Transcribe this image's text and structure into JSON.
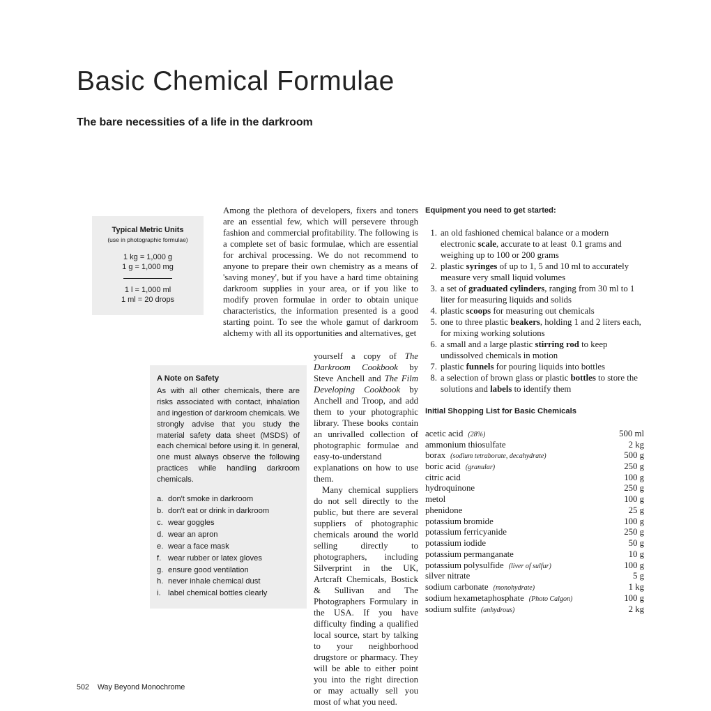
{
  "title": "Basic Chemical Formulae",
  "subtitle": "The bare necessities of a life in the darkroom",
  "units": {
    "heading": "Typical Metric Units",
    "sub": "(use in photographic formulae)",
    "l1": "1 kg = 1,000 g",
    "l2": "1 g = 1,000 mg",
    "l3": "1 l = 1,000 ml",
    "l4": "1 ml = 20 drops"
  },
  "safety": {
    "heading": "A Note on Safety",
    "body": "As with all other chemicals, there are risks associated with contact, inhalation and ingestion of darkroom chemicals. We strongly advise that you study the material safety data sheet (MSDS) of each chemical before using it. In general, one must always observe the following practices while handling darkroom chemicals.",
    "items": [
      {
        "l": "a.",
        "t": "don't smoke in darkroom"
      },
      {
        "l": "b.",
        "t": "don't eat or drink in darkroom"
      },
      {
        "l": "c.",
        "t": "wear goggles"
      },
      {
        "l": "d.",
        "t": "wear an apron"
      },
      {
        "l": "e.",
        "t": "wear a face mask"
      },
      {
        "l": "f.",
        "t": "wear rubber or latex gloves"
      },
      {
        "l": "g.",
        "t": "ensure good ventilation"
      },
      {
        "l": "h.",
        "t": "never inhale chemical dust"
      },
      {
        "l": "i.",
        "t": "label chemical bottles clearly"
      }
    ]
  },
  "main": {
    "p1": "Among the plethora of developers, fixers and toners are an essential few, which will persevere through fashion and commercial profitability. The following is a complete set of basic formulae, which are essential for archival processing. We do not recommend to anyone to prepare their own chemistry as a means of 'saving money', but if you have a hard time obtaining darkroom supplies in your area, or if you like to modify proven formulae in order to obtain unique characteristics, the information presented is a good starting point. To see the whole gamut of darkroom alchemy with all its opportunities and alternatives, get",
    "p2a": "yourself a copy of ",
    "p2b": "The Darkroom Cookbook",
    "p2c": " by Steve Anchell and ",
    "p2d": "The Film Developing Cookbook",
    "p2e": " by Anchell and Troop, and add them to your photographic library. These books contain an unrivalled collection of photographic formulae and easy-to-understand explanations on how to use them.",
    "p3": "Many chemical suppliers do not sell directly to the public, but there are several suppliers of photographic chemicals around the world selling directly to photographers, including Silverprint in the UK, Artcraft Chemicals, Bostick & Sullivan and The Photographers Formulary in the USA. If you have difficulty finding a qualified local source, start by talking to your neighborhood drugstore or pharmacy. They will be able to either point you into the right direction or may actually sell you most of what you need."
  },
  "equip": {
    "heading": "Equipment you need to get started:",
    "items": [
      "an old fashioned chemical balance or a modern electronic <strong>scale</strong>, accurate to at least  0.1 grams and weighing up to 100 or 200 grams",
      "plastic <strong>syringes</strong> of up to 1, 5 and 10 ml to accurately measure very small liquid volumes",
      "a set of <strong>graduated cylinders</strong>, ranging from 30 ml to 1 liter for measuring liquids and solids",
      "plastic <strong>scoops</strong> for measuring out chemicals",
      "one to three plastic <strong>beakers</strong>, holding 1 and 2 liters each, for mixing working solutions",
      "a small and a large plastic <strong>stirring rod</strong> to keep undissolved chemicals in motion",
      "plastic <strong>funnels</strong> for pouring liquids into bottles",
      "a selection of brown glass or plastic <strong>bottles</strong> to store the solutions and <strong>labels</strong> to identify them"
    ]
  },
  "shop": {
    "heading": "Initial Shopping List for Basic Chemicals",
    "items": [
      {
        "chem": "acetic acid",
        "note": "(28%)",
        "amt": "500 ml"
      },
      {
        "chem": "ammonium thiosulfate",
        "note": "",
        "amt": "2 kg"
      },
      {
        "chem": "borax",
        "note": "(sodium tetraborate, decahydrate)",
        "amt": "500 g"
      },
      {
        "chem": "boric acid",
        "note": "(granular)",
        "amt": "250 g"
      },
      {
        "chem": "citric acid",
        "note": "",
        "amt": "100 g"
      },
      {
        "chem": "hydroquinone",
        "note": "",
        "amt": "250 g"
      },
      {
        "chem": "metol",
        "note": "",
        "amt": "100 g"
      },
      {
        "chem": "phenidone",
        "note": "",
        "amt": "25 g"
      },
      {
        "chem": "potassium bromide",
        "note": "",
        "amt": "100 g"
      },
      {
        "chem": "potassium ferricyanide",
        "note": "",
        "amt": "250 g"
      },
      {
        "chem": "potassium iodide",
        "note": "",
        "amt": "50 g"
      },
      {
        "chem": "potassium permanganate",
        "note": "",
        "amt": "10 g"
      },
      {
        "chem": "potassium polysulfide",
        "note": "(liver of sulfur)",
        "amt": "100 g"
      },
      {
        "chem": "silver nitrate",
        "note": "",
        "amt": "5 g"
      },
      {
        "chem": "sodium carbonate",
        "note": "(monohydrate)",
        "amt": "1 kg"
      },
      {
        "chem": "sodium hexametaphosphate",
        "note": "(Photo Calgon)",
        "amt": "100 g"
      },
      {
        "chem": "sodium sulfite",
        "note": "(anhydrous)",
        "amt": "2 kg"
      }
    ]
  },
  "footer": {
    "page": "502",
    "book": "Way Beyond Monochrome"
  }
}
